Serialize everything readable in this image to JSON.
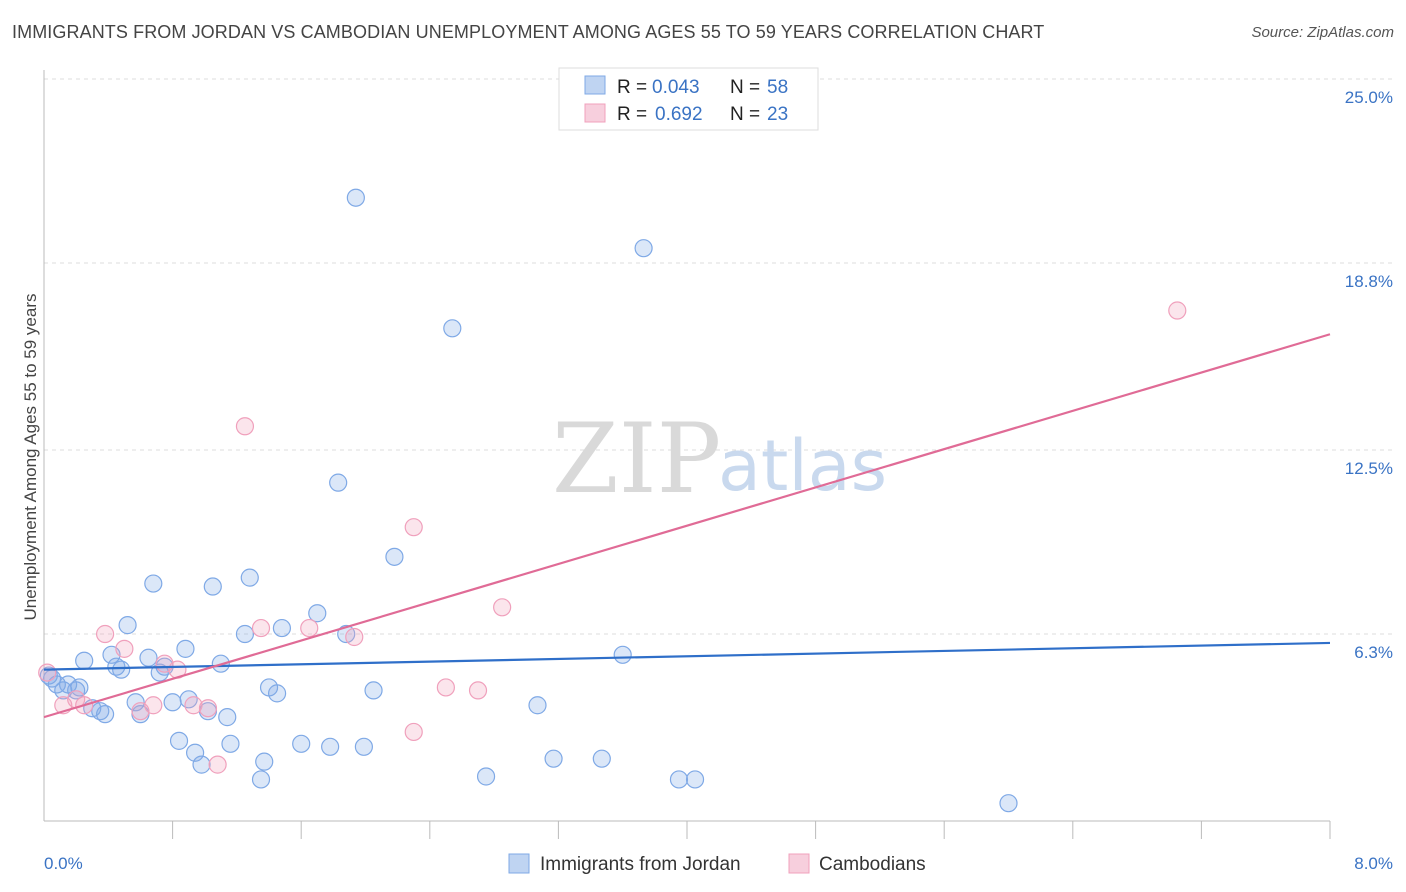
{
  "header": {
    "title": "IMMIGRANTS FROM JORDAN VS CAMBODIAN UNEMPLOYMENT AMONG AGES 55 TO 59 YEARS CORRELATION CHART",
    "source": "Source: ZipAtlas.com"
  },
  "watermark": {
    "part1": "ZIP",
    "part2": "atlas"
  },
  "legend": {
    "rows": [
      {
        "r_label": "R = ",
        "r_value": "0.043",
        "n_label": "N = ",
        "n_value": "58",
        "color": "#7fa9e6"
      },
      {
        "r_label": "R = ",
        "r_value": "0.692",
        "n_label": "N = ",
        "n_value": "23",
        "color": "#f0a0bc"
      }
    ]
  },
  "bottom_legend": {
    "items": [
      {
        "label": "Immigrants from Jordan",
        "color": "#7fa9e6"
      },
      {
        "label": "Cambodians",
        "color": "#f0a0bc"
      }
    ]
  },
  "chart_data": {
    "type": "scatter",
    "title": "IMMIGRANTS FROM JORDAN VS CAMBODIAN UNEMPLOYMENT AMONG AGES 55 TO 59 YEARS CORRELATION CHART",
    "xlabel": "",
    "ylabel": "Unemployment Among Ages 55 to 59 years",
    "xlim": [
      0,
      8.0
    ],
    "ylim": [
      0,
      25.0
    ],
    "x_tick_labels": [
      "0.0%",
      "8.0%"
    ],
    "y_ticks": [
      6.3,
      12.5,
      18.8,
      25.0
    ],
    "y_tick_labels": [
      "6.3%",
      "12.5%",
      "18.8%",
      "25.0%"
    ],
    "grid": true,
    "legend_position": "top-center",
    "series": [
      {
        "name": "Immigrants from Jordan",
        "color": "#7fa9e6",
        "line_color": "#2f6fc9",
        "trend": {
          "x": [
            0,
            8.0
          ],
          "y": [
            5.1,
            6.0
          ]
        },
        "points": [
          {
            "x": 0.03,
            "y": 4.9
          },
          {
            "x": 0.08,
            "y": 4.6
          },
          {
            "x": 0.12,
            "y": 4.4
          },
          {
            "x": 0.15,
            "y": 4.6
          },
          {
            "x": 0.22,
            "y": 4.5
          },
          {
            "x": 0.25,
            "y": 5.4
          },
          {
            "x": 0.3,
            "y": 3.8
          },
          {
            "x": 0.35,
            "y": 3.7
          },
          {
            "x": 0.38,
            "y": 3.6
          },
          {
            "x": 0.42,
            "y": 5.6
          },
          {
            "x": 0.45,
            "y": 5.2
          },
          {
            "x": 0.48,
            "y": 5.1
          },
          {
            "x": 0.52,
            "y": 6.6
          },
          {
            "x": 0.57,
            "y": 4.0
          },
          {
            "x": 0.6,
            "y": 3.6
          },
          {
            "x": 0.65,
            "y": 5.5
          },
          {
            "x": 0.68,
            "y": 8.0
          },
          {
            "x": 0.72,
            "y": 5.0
          },
          {
            "x": 0.75,
            "y": 5.2
          },
          {
            "x": 0.8,
            "y": 4.0
          },
          {
            "x": 0.84,
            "y": 2.7
          },
          {
            "x": 0.88,
            "y": 5.8
          },
          {
            "x": 0.9,
            "y": 4.1
          },
          {
            "x": 0.94,
            "y": 2.3
          },
          {
            "x": 0.98,
            "y": 1.9
          },
          {
            "x": 1.02,
            "y": 3.7
          },
          {
            "x": 1.05,
            "y": 7.9
          },
          {
            "x": 1.1,
            "y": 5.3
          },
          {
            "x": 1.14,
            "y": 3.5
          },
          {
            "x": 1.16,
            "y": 2.6
          },
          {
            "x": 1.25,
            "y": 6.3
          },
          {
            "x": 1.28,
            "y": 8.2
          },
          {
            "x": 1.35,
            "y": 1.4
          },
          {
            "x": 1.37,
            "y": 2.0
          },
          {
            "x": 1.4,
            "y": 4.5
          },
          {
            "x": 1.45,
            "y": 4.3
          },
          {
            "x": 1.48,
            "y": 6.5
          },
          {
            "x": 1.6,
            "y": 2.6
          },
          {
            "x": 1.7,
            "y": 7.0
          },
          {
            "x": 1.78,
            "y": 2.5
          },
          {
            "x": 1.83,
            "y": 11.4
          },
          {
            "x": 1.88,
            "y": 6.3
          },
          {
            "x": 1.94,
            "y": 21.0
          },
          {
            "x": 1.99,
            "y": 2.5
          },
          {
            "x": 2.05,
            "y": 4.4
          },
          {
            "x": 2.18,
            "y": 8.9
          },
          {
            "x": 2.54,
            "y": 16.6
          },
          {
            "x": 2.75,
            "y": 1.5
          },
          {
            "x": 3.07,
            "y": 3.9
          },
          {
            "x": 3.17,
            "y": 2.1
          },
          {
            "x": 3.47,
            "y": 2.1
          },
          {
            "x": 3.6,
            "y": 5.6
          },
          {
            "x": 3.73,
            "y": 19.3
          },
          {
            "x": 3.95,
            "y": 1.4
          },
          {
            "x": 4.05,
            "y": 1.4
          },
          {
            "x": 6.0,
            "y": 0.6
          },
          {
            "x": 0.05,
            "y": 4.8
          },
          {
            "x": 0.2,
            "y": 4.4
          }
        ]
      },
      {
        "name": "Cambodians",
        "color": "#f0a0bc",
        "line_color": "#e06b96",
        "trend": {
          "x": [
            0,
            8.0
          ],
          "y": [
            3.5,
            16.4
          ]
        },
        "points": [
          {
            "x": 0.02,
            "y": 5.0
          },
          {
            "x": 0.12,
            "y": 3.9
          },
          {
            "x": 0.2,
            "y": 4.1
          },
          {
            "x": 0.25,
            "y": 3.9
          },
          {
            "x": 0.38,
            "y": 6.3
          },
          {
            "x": 0.5,
            "y": 5.8
          },
          {
            "x": 0.6,
            "y": 3.7
          },
          {
            "x": 0.68,
            "y": 3.9
          },
          {
            "x": 0.75,
            "y": 5.3
          },
          {
            "x": 0.83,
            "y": 5.1
          },
          {
            "x": 0.93,
            "y": 3.9
          },
          {
            "x": 1.02,
            "y": 3.8
          },
          {
            "x": 1.08,
            "y": 1.9
          },
          {
            "x": 1.25,
            "y": 13.3
          },
          {
            "x": 1.35,
            "y": 6.5
          },
          {
            "x": 1.65,
            "y": 6.5
          },
          {
            "x": 1.93,
            "y": 6.2
          },
          {
            "x": 2.3,
            "y": 3.0
          },
          {
            "x": 2.3,
            "y": 9.9
          },
          {
            "x": 2.5,
            "y": 4.5
          },
          {
            "x": 2.7,
            "y": 4.4
          },
          {
            "x": 2.85,
            "y": 7.2
          },
          {
            "x": 7.05,
            "y": 17.2
          }
        ]
      }
    ]
  }
}
